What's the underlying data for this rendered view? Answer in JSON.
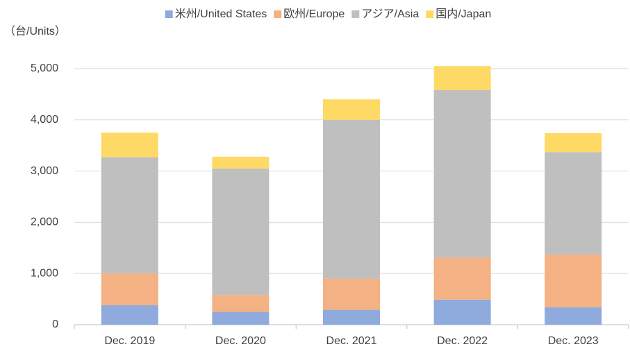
{
  "chart_data": {
    "type": "stacked_bar",
    "y_axis_label": "（台/Units）",
    "categories": [
      "Dec. 2019",
      "Dec. 2020",
      "Dec. 2021",
      "Dec. 2022",
      "Dec. 2023"
    ],
    "series": [
      {
        "name": "米州/United States",
        "color": "#8faadc",
        "values": [
          380,
          250,
          290,
          490,
          340
        ]
      },
      {
        "name": "欧州/Europe",
        "color": "#f4b183",
        "values": [
          620,
          330,
          610,
          820,
          1030
        ]
      },
      {
        "name": "アジア/Asia",
        "color": "#bfbfbf",
        "values": [
          2270,
          2470,
          3100,
          3270,
          2000
        ]
      },
      {
        "name": "国内/Japan",
        "color": "#ffd966",
        "values": [
          480,
          230,
          400,
          470,
          370
        ]
      }
    ],
    "ylim": [
      0,
      5500
    ],
    "yticks": [
      0,
      {
        "value": 1000,
        "label": "1,000"
      },
      {
        "value": 2000,
        "label": "2,000"
      },
      {
        "value": 3000,
        "label": "3,000"
      },
      {
        "value": 4000,
        "label": "4,000"
      },
      {
        "value": 5000,
        "label": "5,000"
      }
    ],
    "grid": true,
    "legend": "top"
  }
}
